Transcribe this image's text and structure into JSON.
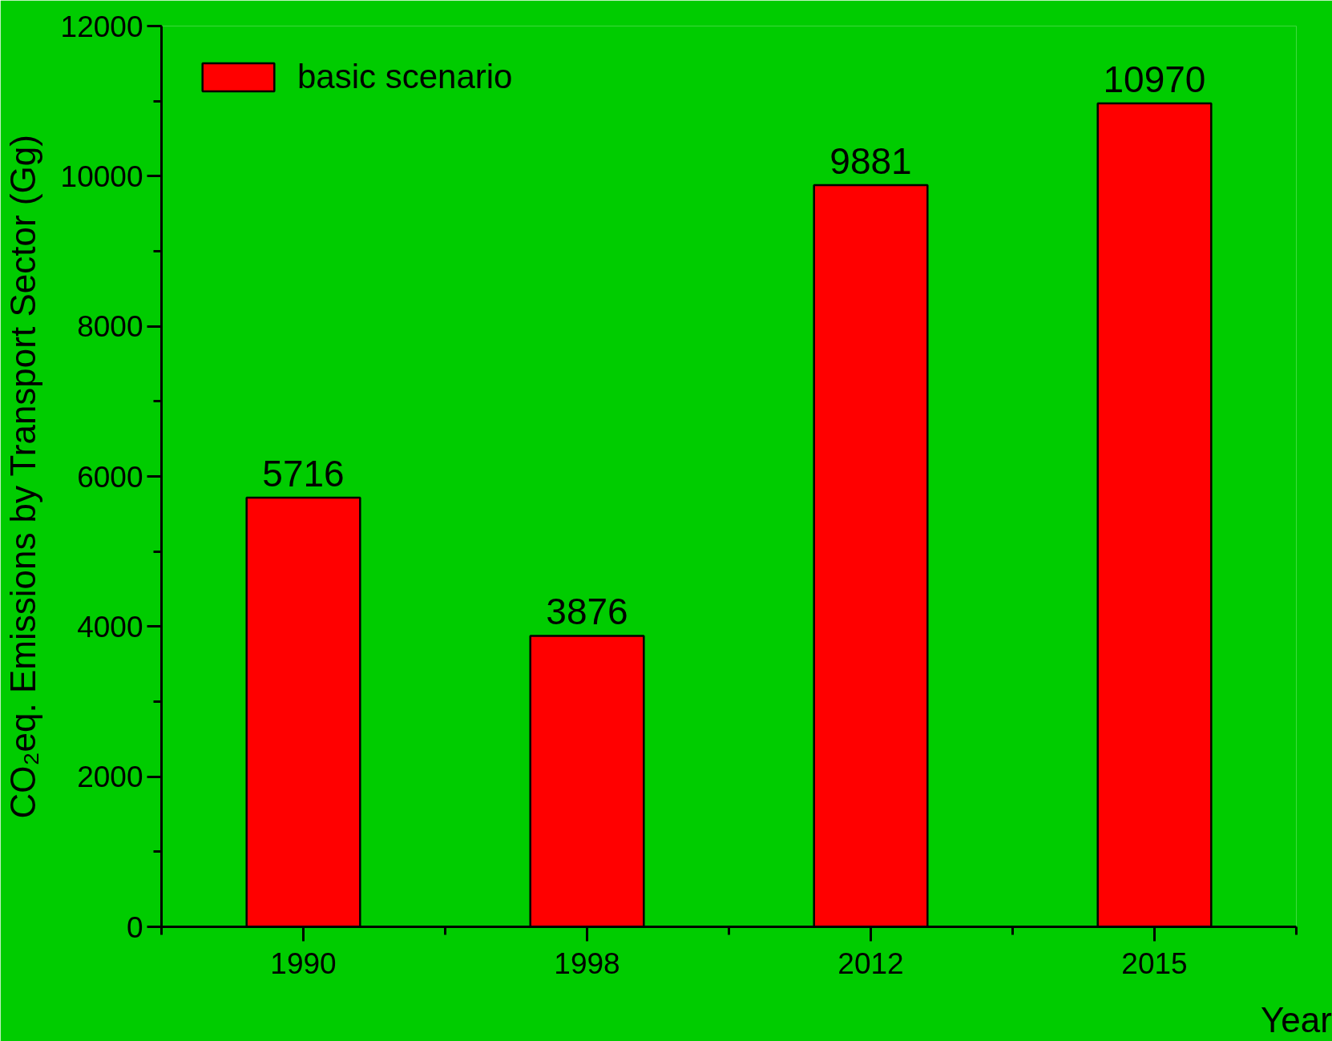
{
  "chart_data": {
    "type": "bar",
    "xlabel": "Year",
    "ylabel": "CO₂eq. Emissions by Transport Sector (Gg)",
    "categories": [
      "1990",
      "1998",
      "2012",
      "2015"
    ],
    "series": [
      {
        "name": "basic scenario",
        "color": "#ff0000",
        "values": [
          5716,
          3876,
          9881,
          10970
        ]
      }
    ],
    "ylim": [
      0,
      12000
    ],
    "yticks": [
      0,
      2000,
      4000,
      6000,
      8000,
      10000,
      12000
    ],
    "data_labels": true,
    "legend": "top left",
    "grid": false
  }
}
